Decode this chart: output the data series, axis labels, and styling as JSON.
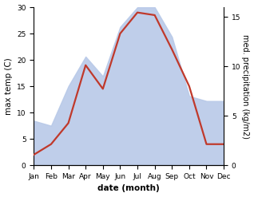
{
  "months": [
    "Jan",
    "Feb",
    "Mar",
    "Apr",
    "May",
    "Jun",
    "Jul",
    "Aug",
    "Sep",
    "Oct",
    "Nov",
    "Dec"
  ],
  "month_x": [
    1,
    2,
    3,
    4,
    5,
    6,
    7,
    8,
    9,
    10,
    11,
    12
  ],
  "temperature": [
    2,
    4,
    8,
    19,
    14.5,
    25,
    29,
    28.5,
    22,
    15,
    4,
    4
  ],
  "precipitation": [
    4.5,
    4.0,
    8.0,
    11.0,
    9.0,
    14.0,
    16.0,
    16.0,
    13.0,
    7.0,
    6.5,
    6.5
  ],
  "temp_ylim": [
    0,
    30
  ],
  "precip_ylim": [
    0,
    16
  ],
  "temp_yticks": [
    0,
    5,
    10,
    15,
    20,
    25,
    30
  ],
  "precip_yticks": [
    0,
    5,
    10,
    15
  ],
  "temp_color": "#c0392b",
  "fill_color": "#b8c9e8",
  "fill_alpha": 0.9,
  "xlabel": "date (month)",
  "ylabel_left": "max temp (C)",
  "ylabel_right": "med. precipitation (kg/m2)",
  "bg_color": "#ffffff",
  "line_width": 1.6,
  "label_fontsize": 7.5,
  "tick_fontsize": 6.5
}
